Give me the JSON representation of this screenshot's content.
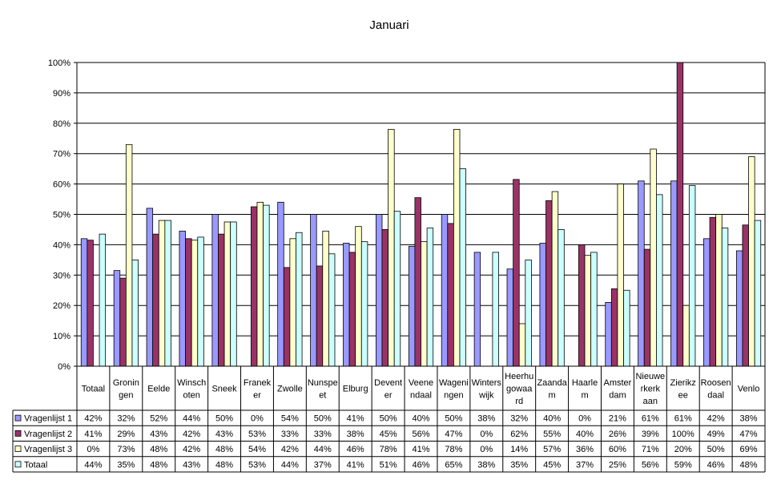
{
  "chart_data": {
    "type": "bar",
    "title": "Januari",
    "ylim": [
      0,
      100
    ],
    "yticks": [
      "0%",
      "10%",
      "20%",
      "30%",
      "40%",
      "50%",
      "60%",
      "70%",
      "80%",
      "90%",
      "100%"
    ],
    "grid": true,
    "legend_placement": "data-table-bottom",
    "categories": [
      [
        "Totaal"
      ],
      [
        "Gronin",
        "gen"
      ],
      [
        "Eelde"
      ],
      [
        "Winsch",
        "oten"
      ],
      [
        "Sneek"
      ],
      [
        "Franek",
        "er"
      ],
      [
        "Zwolle"
      ],
      [
        "Nunspe",
        "et"
      ],
      [
        "Elburg"
      ],
      [
        "Devent",
        "er"
      ],
      [
        "Veene",
        "ndaal"
      ],
      [
        "Wageni",
        "ngen"
      ],
      [
        "Winters",
        "wijk"
      ],
      [
        "Heerhu",
        "gowaa",
        "rd"
      ],
      [
        "Zaanda",
        "m"
      ],
      [
        "Haarle",
        "m"
      ],
      [
        "Amster",
        "dam"
      ],
      [
        "Nieuwe",
        "rkerk",
        "aan"
      ],
      [
        "Zierikz",
        "ee"
      ],
      [
        "Roosen",
        "daal"
      ],
      [
        "Venlo"
      ]
    ],
    "series": [
      {
        "name": "Vragenlijst 1",
        "color": "#9999ff",
        "values": [
          42,
          31.5,
          52,
          44.5,
          50,
          0,
          54,
          50,
          40.5,
          50,
          39.5,
          50,
          37.5,
          32,
          40.5,
          0,
          21,
          61,
          61,
          42,
          38
        ],
        "labels": [
          "42%",
          "32%",
          "52%",
          "44%",
          "50%",
          "0%",
          "54%",
          "50%",
          "41%",
          "50%",
          "40%",
          "50%",
          "38%",
          "32%",
          "40%",
          "0%",
          "21%",
          "61%",
          "61%",
          "42%",
          "38%"
        ]
      },
      {
        "name": "Vragenlijst 2",
        "color": "#993366",
        "values": [
          41.5,
          29,
          43.5,
          42,
          43.5,
          52.5,
          32.5,
          33,
          37.5,
          45,
          55.5,
          47,
          0,
          61.5,
          54.5,
          40,
          25.5,
          38.5,
          100,
          49,
          46.5
        ],
        "labels": [
          "41%",
          "29%",
          "43%",
          "42%",
          "43%",
          "53%",
          "33%",
          "33%",
          "38%",
          "45%",
          "56%",
          "47%",
          "0%",
          "62%",
          "55%",
          "40%",
          "26%",
          "39%",
          "100%",
          "49%",
          "47%"
        ]
      },
      {
        "name": "Vragenlijst 3",
        "color": "#ffffcc",
        "values": [
          0,
          73,
          48,
          41.5,
          47.5,
          54,
          42,
          44.5,
          46,
          78,
          41,
          78,
          0,
          14,
          57.5,
          36.5,
          60,
          71.5,
          20,
          50,
          69
        ],
        "labels": [
          "0%",
          "73%",
          "48%",
          "42%",
          "48%",
          "54%",
          "42%",
          "44%",
          "46%",
          "78%",
          "41%",
          "78%",
          "0%",
          "14%",
          "57%",
          "36%",
          "60%",
          "71%",
          "20%",
          "50%",
          "69%"
        ]
      },
      {
        "name": "Totaal",
        "color": "#ccffff",
        "values": [
          43.5,
          35,
          48,
          42.5,
          47.5,
          53,
          44,
          37,
          41,
          51,
          45.5,
          65,
          37.5,
          35,
          45,
          37.5,
          25,
          56.5,
          59.5,
          45.5,
          48
        ],
        "labels": [
          "44%",
          "35%",
          "48%",
          "43%",
          "48%",
          "53%",
          "44%",
          "37%",
          "41%",
          "51%",
          "46%",
          "65%",
          "38%",
          "35%",
          "45%",
          "37%",
          "25%",
          "56%",
          "59%",
          "46%",
          "48%"
        ]
      }
    ]
  }
}
